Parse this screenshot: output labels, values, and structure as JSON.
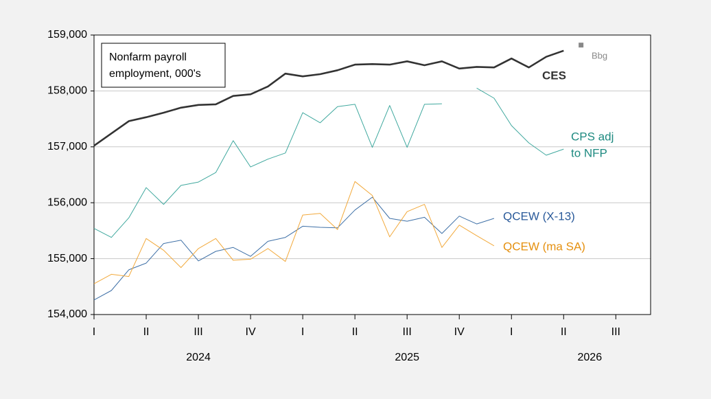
{
  "chart_data": {
    "type": "line",
    "title": [
      "Nonfarm payroll",
      "employment, 000's"
    ],
    "xlim": [
      0,
      32
    ],
    "xticks": [
      {
        "value": 0,
        "label": "I"
      },
      {
        "value": 3,
        "label": "II"
      },
      {
        "value": 6,
        "label": "III"
      },
      {
        "value": 9,
        "label": "IV"
      },
      {
        "value": 12,
        "label": "I"
      },
      {
        "value": 15,
        "label": "II"
      },
      {
        "value": 18,
        "label": "III"
      },
      {
        "value": 21,
        "label": "IV"
      },
      {
        "value": 24,
        "label": "I"
      },
      {
        "value": 27,
        "label": "II"
      },
      {
        "value": 30,
        "label": "III"
      }
    ],
    "year_labels": [
      {
        "value": 6,
        "label": "2024"
      },
      {
        "value": 18,
        "label": "2025"
      },
      {
        "value": 28.5,
        "label": "2026"
      }
    ],
    "ylim": [
      154000,
      159000
    ],
    "yticks": [
      {
        "value": 154000,
        "label": "154,000"
      },
      {
        "value": 155000,
        "label": "155,000"
      },
      {
        "value": 156000,
        "label": "156,000"
      },
      {
        "value": 157000,
        "label": "157,000"
      },
      {
        "value": 158000,
        "label": "158,000"
      },
      {
        "value": 159000,
        "label": "159,000"
      }
    ],
    "grid": true,
    "series": [
      {
        "label": [
          "CES"
        ],
        "color": "#333333",
        "width": 2.6,
        "bold": true,
        "x": [
          0,
          1,
          2,
          3,
          4,
          5,
          6,
          7,
          8,
          9,
          10,
          11,
          12,
          13,
          14,
          15,
          16,
          17,
          18,
          19,
          20,
          21,
          22,
          23,
          24,
          25,
          26,
          27
        ],
        "values": [
          157020,
          157240,
          157460,
          157530,
          157610,
          157700,
          157750,
          157760,
          157910,
          157940,
          158080,
          158310,
          158260,
          158300,
          158370,
          158470,
          158480,
          158470,
          158530,
          158460,
          158530,
          158400,
          158430,
          158420,
          158580,
          158420,
          158610,
          158720
        ]
      },
      {
        "label": [
          "CPS adj",
          "to NFP"
        ],
        "color": "#3fa89e",
        "text_color": "#1e8a80",
        "width": 1,
        "x": [
          0,
          1,
          2,
          3,
          4,
          5,
          6,
          7,
          8,
          9,
          10,
          11,
          12,
          13,
          14,
          15,
          16,
          17,
          18,
          19,
          20,
          21,
          22,
          23,
          24,
          25,
          26,
          27
        ],
        "values": [
          155540,
          155380,
          155730,
          156270,
          155970,
          156310,
          156370,
          156540,
          157110,
          156640,
          156780,
          156890,
          157610,
          157430,
          157720,
          157760,
          156990,
          157740,
          156990,
          157760,
          157770,
          null,
          158050,
          157870,
          157380,
          157070,
          156850,
          156960
        ]
      },
      {
        "label": [
          "QCEW (X-13)"
        ],
        "color": "#3d6fa6",
        "text_color": "#2a5a9a",
        "width": 1,
        "x": [
          0,
          1,
          2,
          3,
          4,
          5,
          6,
          7,
          8,
          9,
          10,
          11,
          12,
          13,
          14,
          15,
          16,
          17,
          18,
          19,
          20,
          21,
          22,
          23
        ],
        "values": [
          154260,
          154430,
          154800,
          154920,
          155270,
          155330,
          154960,
          155130,
          155200,
          155040,
          155310,
          155380,
          155580,
          155560,
          155550,
          155870,
          156100,
          155720,
          155670,
          155740,
          155450,
          155760,
          155620,
          155720
        ]
      },
      {
        "label": [
          "QCEW (ma SA)"
        ],
        "color": "#f2a93b",
        "text_color": "#e5900f",
        "width": 1,
        "x": [
          0,
          1,
          2,
          3,
          4,
          5,
          6,
          7,
          8,
          9,
          10,
          11,
          12,
          13,
          14,
          15,
          16,
          17,
          18,
          19,
          20,
          21,
          22,
          23
        ],
        "values": [
          154550,
          154720,
          154680,
          155360,
          155150,
          154840,
          155180,
          155360,
          154970,
          154990,
          155180,
          154950,
          155780,
          155810,
          155520,
          156380,
          156130,
          155390,
          155840,
          155970,
          155200,
          155600,
          155410,
          155230
        ]
      },
      {
        "label": [
          "Bbg"
        ],
        "color": "#888888",
        "marker": "square",
        "x": [
          28
        ],
        "values": [
          158820
        ]
      }
    ]
  }
}
